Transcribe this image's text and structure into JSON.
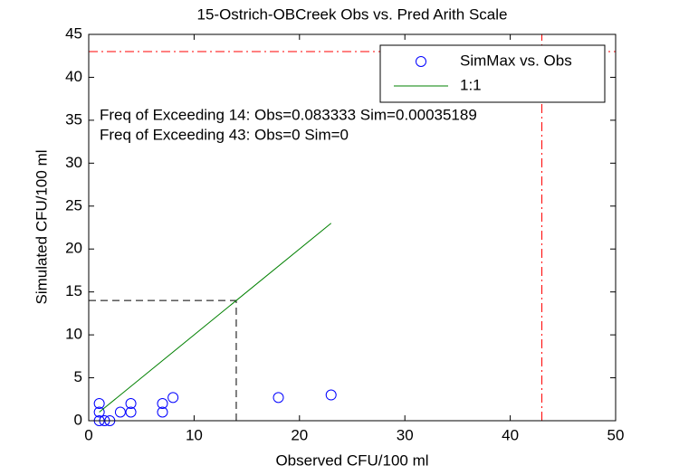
{
  "chart_data": {
    "type": "scatter",
    "title": "15-Ostrich-OBCreek Obs vs. Pred Arith Scale",
    "x_label": "Observed CFU/100 ml",
    "y_label": "Simulated CFU/100 ml",
    "xlim": [
      0,
      50
    ],
    "ylim": [
      0,
      45
    ],
    "xticks": [
      0,
      10,
      20,
      30,
      40,
      50
    ],
    "yticks": [
      0,
      5,
      10,
      15,
      20,
      25,
      30,
      35,
      40,
      45
    ],
    "legend": "upper right",
    "series": [
      {
        "name": "SimMax vs. Obs",
        "color": "#0000ff",
        "marker": "circle",
        "x": [
          1,
          1,
          1,
          1.5,
          2,
          3,
          4,
          4,
          7,
          7,
          8,
          18,
          23
        ],
        "values": [
          2,
          1,
          0,
          0,
          0,
          1,
          2,
          1,
          1,
          2,
          2.7,
          2.7,
          3
        ]
      },
      {
        "name": "1:1",
        "color": "#008000",
        "marker": "line",
        "x": [
          1,
          23
        ],
        "values": [
          1,
          23
        ]
      }
    ],
    "reference_lines": [
      {
        "value": 14,
        "color": "#000000",
        "style": "dashed"
      },
      {
        "value": 43,
        "color": "#ff0000",
        "style": "dashdot"
      }
    ],
    "annotations": [
      "Freq of Exceeding 14: Obs=0.083333 Sim=0.00035189",
      "Freq of Exceeding 43: Obs=0 Sim=0"
    ]
  }
}
